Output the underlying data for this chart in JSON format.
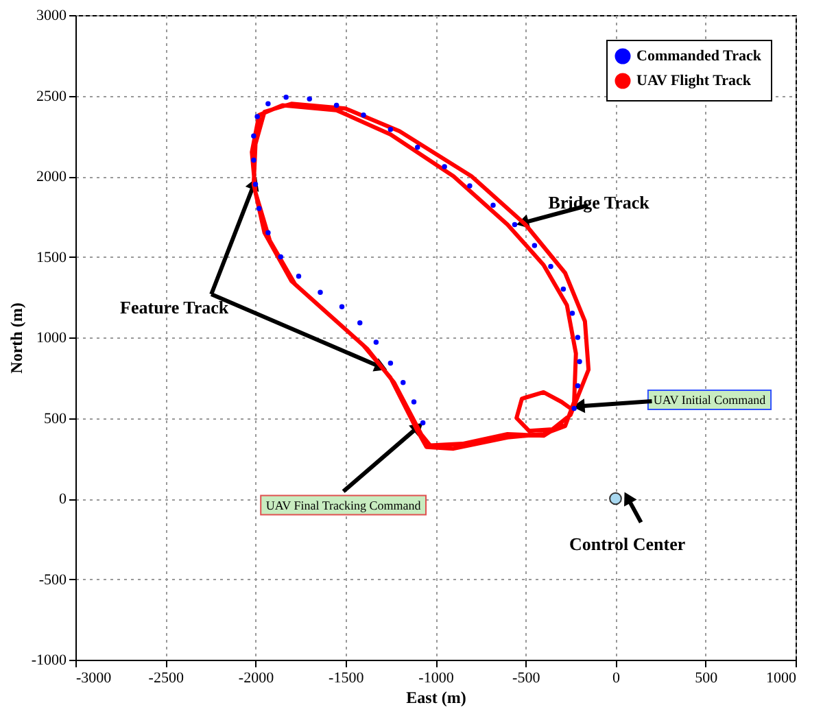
{
  "chart_data": {
    "type": "line",
    "xlabel": "East (m)",
    "ylabel": "North (m)",
    "xlim": [
      -3000,
      1000
    ],
    "ylim": [
      -1000,
      3000
    ],
    "xticks": [
      -3000,
      -2500,
      -2000,
      -1500,
      -1000,
      -500,
      0,
      500,
      1000
    ],
    "yticks": [
      -1000,
      -500,
      0,
      500,
      1000,
      1500,
      2000,
      2500,
      3000
    ],
    "grid": true,
    "legend": "top right",
    "series": [
      {
        "name": "Commanded Track",
        "type": "scatter",
        "marker": "circle",
        "color": "#0000ff",
        "x": [
          -230,
          -210,
          -200,
          -210,
          -240,
          -290,
          -360,
          -450,
          -560,
          -680,
          -810,
          -950,
          -1100,
          -1250,
          -1400,
          -1550,
          -1700,
          -1830,
          -1930,
          -1990,
          -2010,
          -2010,
          -2000,
          -1980,
          -1930,
          -1860,
          -1760,
          -1640,
          -1520,
          -1420,
          -1330,
          -1250,
          -1180,
          -1120,
          -1070
        ],
        "values": [
          560,
          700,
          850,
          1000,
          1150,
          1300,
          1440,
          1570,
          1700,
          1820,
          1940,
          2060,
          2180,
          2290,
          2380,
          2440,
          2480,
          2490,
          2450,
          2370,
          2250,
          2100,
          1950,
          1800,
          1650,
          1500,
          1380,
          1280,
          1190,
          1090,
          970,
          840,
          720,
          600,
          470
        ]
      },
      {
        "name": "UAV Flight Track",
        "type": "line",
        "color": "#ff0000",
        "x": [
          -250,
          -300,
          -400,
          -520,
          -550,
          -480,
          -350,
          -250,
          -150,
          -170,
          -280,
          -500,
          -800,
          -1200,
          -1500,
          -1800,
          -1950,
          -2000,
          -2010,
          -1950,
          -1800,
          -1600,
          -1400,
          -1250,
          -1100,
          -1050,
          -900,
          -600,
          -400,
          -280,
          -230,
          -220,
          -270,
          -400,
          -600,
          -900,
          -1250,
          -1550,
          -1850,
          -1980,
          -2020,
          -2000,
          -1920,
          -1780,
          -1580,
          -1380,
          -1230,
          -1080,
          -1030,
          -850,
          -600,
          -400,
          -300
        ],
        "values": [
          560,
          600,
          660,
          620,
          500,
          420,
          430,
          520,
          800,
          1100,
          1400,
          1700,
          2000,
          2280,
          2420,
          2450,
          2400,
          2200,
          1950,
          1650,
          1350,
          1150,
          950,
          750,
          420,
          320,
          310,
          380,
          400,
          450,
          600,
          900,
          1200,
          1450,
          1700,
          2000,
          2260,
          2410,
          2440,
          2380,
          2150,
          1900,
          1600,
          1330,
          1130,
          930,
          720,
          400,
          330,
          340,
          400,
          390,
          460
        ]
      },
      {
        "type": "scatter",
        "marker": "circle",
        "color": "#a8d8f0",
        "x": [
          0
        ],
        "values": [
          0
        ]
      }
    ],
    "annotations": [
      {
        "text": "Bridge Track",
        "x": -550,
        "y": 1700
      },
      {
        "text": "Feature Track",
        "x": -1270,
        "y": 800
      },
      {
        "text": "UAV Initial Command",
        "x": -240,
        "y": 570
      },
      {
        "text": "UAV Final Tracking Command",
        "x": -1070,
        "y": 470
      },
      {
        "text": "Control Center",
        "x": 50,
        "y": 40
      }
    ]
  }
}
